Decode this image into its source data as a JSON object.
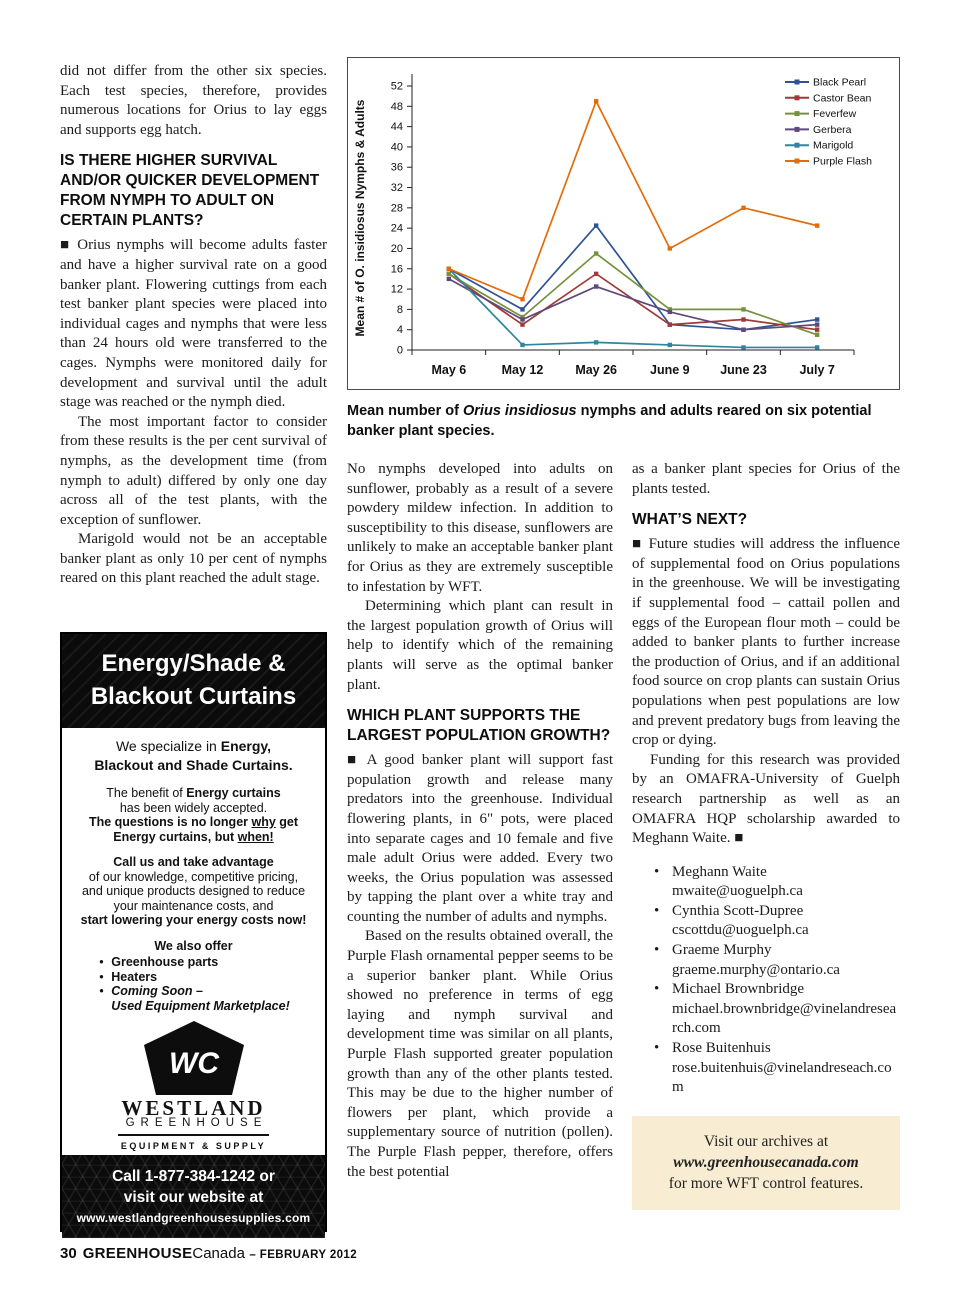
{
  "page": {
    "footer": {
      "page_number": "30",
      "brand_bold": "GREENHOUSE",
      "brand_light": "Canada",
      "issue": "– FEBRUARY 2012"
    }
  },
  "left_column": {
    "p1": "did not differ from the other six species. Each test species, therefore, provides numerous locations for Orius to lay eggs and supports egg hatch.",
    "heading": "IS THERE HIGHER SURVIVAL AND/OR QUICKER DEVELOPMENT FROM NYMPH TO ADULT ON CERTAIN PLANTS?",
    "p2": "■ Orius nymphs will become adults faster and have a higher survival rate on a good banker plant. Flowering cuttings from each test banker plant species were placed into individual cages and nymphs that were less than 24 hours old were transferred to the cages. Nymphs were monitored daily for development and survival until the adult stage was reached or the nymph died.",
    "p3": "The most important factor to consider from these results is the per cent survival of nymphs, as the development time (from nymph to adult) differed by only one day across all of the test plants, with the exception of sunflower.",
    "p4": "Marigold would not be an acceptable banker plant as only 10 per cent of nymphs reared on this plant reached the adult stage."
  },
  "chart_caption": {
    "pre": "Mean number of ",
    "species": "Orius insidiosus",
    "post": " nymphs and adults reared on six potential banker plant species."
  },
  "chart_data": {
    "type": "line",
    "title": "",
    "xlabel": "",
    "ylabel": "Mean # of O. insidiosus Nymphs & Adults",
    "ylim": [
      0,
      52
    ],
    "ytick_step": 4,
    "grid": false,
    "legend_position": "top-right",
    "categories": [
      "May 6",
      "May 12",
      "May 26",
      "June 9",
      "June 23",
      "July 7"
    ],
    "series": [
      {
        "name": "Black Pearl",
        "color": "#2e5395",
        "values": [
          16,
          8,
          24.5,
          5,
          4,
          6
        ]
      },
      {
        "name": "Castor Bean",
        "color": "#9e3a38",
        "values": [
          15,
          5,
          15,
          5,
          6,
          4
        ]
      },
      {
        "name": "Feverfew",
        "color": "#76923c",
        "values": [
          15,
          6.5,
          19,
          8,
          8,
          3
        ]
      },
      {
        "name": "Gerbera",
        "color": "#5f497a",
        "values": [
          14,
          6,
          12.5,
          7.5,
          4,
          5
        ]
      },
      {
        "name": "Marigold",
        "color": "#31849b",
        "values": [
          16,
          1,
          1.5,
          1,
          0.5,
          0.5
        ]
      },
      {
        "name": "Purple Flash",
        "color": "#e36c0a",
        "values": [
          16,
          10,
          49,
          20,
          28,
          24.5
        ]
      }
    ]
  },
  "middle_column": {
    "p1": "No nymphs developed into adults on sunflower, probably as a result of a severe powdery mildew infection. In addition to susceptibility to this disease, sunflowers are unlikely to make an acceptable banker plant for Orius as they are extremely susceptible to infestation by WFT.",
    "p2": "Determining which plant can result in the largest population growth of Orius will help to identify which of the remaining plants will serve as the optimal banker plant.",
    "heading": "WHICH PLANT SUPPORTS THE LARGEST POPULATION GROWTH?",
    "p3": "■ A good banker plant will support fast population growth and release many predators into the greenhouse. Individual flowering plants, in 6\" pots, were placed into separate cages and 10 female and five male adult Orius were added. Every two weeks, the Orius population was assessed by tapping the plant over a white tray and counting the number of adults and nymphs.",
    "p4": "Based on the results obtained overall, the Purple Flash ornamental pepper seems to be a superior banker plant. While Orius showed no preference in terms of egg laying and nymph survival and development time was similar on all plants, Purple Flash supported greater population growth than any of the other plants tested. This may be due to the higher number of flowers per plant, which provide a supplementary source of nutrition (pollen). The Purple Flash pepper, therefore, offers the best potential"
  },
  "right_column": {
    "p1": "as a banker plant species for Orius of the plants tested.",
    "heading": "WHAT’S NEXT?",
    "p2": "■ Future studies will address the influence of supplemental food on Orius populations in the greenhouse. We will be investigating if supplemental food – cattail pollen and eggs of the European flour moth – could be added to banker plants to further increase the production of Orius, and if an additional food source on crop plants can sustain Orius populations when pest populations are low and prevent predatory bugs from leaving the crop or dying.",
    "p3": "Funding for this research was provided by an OMAFRA-University of Guelph research partnership as well as an OMAFRA HQP scholarship awarded to Meghann Waite. ■"
  },
  "contacts": [
    {
      "name": "Meghann Waite",
      "email": "mwaite@uoguelph.ca"
    },
    {
      "name": "Cynthia Scott-Dupree",
      "email": "cscottdu@uoguelph.ca"
    },
    {
      "name": "Graeme Murphy",
      "email": "graeme.murphy@ontario.ca"
    },
    {
      "name": "Michael Brownbridge",
      "email": "michael.brownbridge@vinelandresearch.com"
    },
    {
      "name": "Rose Buitenhuis",
      "email": "rose.buitenhuis@vinelandreseach.com"
    }
  ],
  "archive_box": {
    "line1": "Visit our archives at",
    "line2": "www.greenhousecanada.com",
    "line3": "for more WFT control features."
  },
  "ad": {
    "headline1": "Energy/Shade &",
    "headline2": "Blackout Curtains",
    "specialize_pre": "We specialize in ",
    "specialize_b1": "Energy,",
    "specialize_b2": "Blackout and Shade Curtains.",
    "benefit_pre": "The benefit of ",
    "benefit_b": "Energy curtains",
    "benefit_l2": "has been widely accepted.",
    "q_pre": "The questions is no longer ",
    "q_u1": "why",
    "q_mid": " get",
    "q_l2_pre": "Energy curtains, but ",
    "q_u2": "when!",
    "call_b1": "Call us and take advantage",
    "call_l2": "of our knowledge, competitive pricing,",
    "call_l3": "and unique products designed to reduce",
    "call_l4": "your maintenance costs, and",
    "call_b2": "start lowering your energy costs now!",
    "offer_title": "We also offer",
    "offer_item1": "Greenhouse parts",
    "offer_item2": "Heaters",
    "offer_item3a": "Coming Soon –",
    "offer_item3b": "Used Equipment Marketplace!",
    "logo_letters": "WC",
    "company": "WESTLAND",
    "company_line2": "GREENHOUSE",
    "company_line3": "EQUIPMENT & SUPPLY",
    "cta_line1": "Call 1-877-384-1242 or",
    "cta_line2": "visit our website at",
    "cta_line3": "www.westlandgreenhousesupplies.com"
  }
}
